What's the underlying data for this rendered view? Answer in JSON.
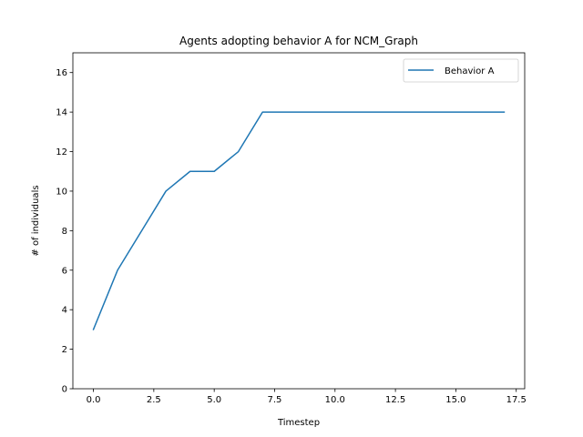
{
  "chart_data": {
    "type": "line",
    "title": "Agents adopting behavior A for NCM_Graph",
    "xlabel": "Timestep",
    "ylabel": "# of individuals",
    "xlim": [
      -0.85,
      17.85
    ],
    "ylim": [
      0,
      17
    ],
    "xticks": [
      0.0,
      2.5,
      5.0,
      7.5,
      10.0,
      12.5,
      15.0,
      17.5
    ],
    "xtick_labels": [
      "0.0",
      "2.5",
      "5.0",
      "7.5",
      "10.0",
      "12.5",
      "15.0",
      "17.5"
    ],
    "yticks": [
      0,
      2,
      4,
      6,
      8,
      10,
      12,
      14,
      16
    ],
    "ytick_labels": [
      "0",
      "2",
      "4",
      "6",
      "8",
      "10",
      "12",
      "14",
      "16"
    ],
    "grid": false,
    "legend": "top-right",
    "series": [
      {
        "name": "Behavior A",
        "color": "#1f77b4",
        "x": [
          0,
          1,
          2,
          3,
          4,
          5,
          6,
          7,
          8,
          9,
          10,
          11,
          12,
          13,
          14,
          15,
          16,
          17
        ],
        "values": [
          3,
          6,
          8,
          10,
          11,
          11,
          12,
          14,
          14,
          14,
          14,
          14,
          14,
          14,
          14,
          14,
          14,
          14
        ]
      }
    ]
  }
}
